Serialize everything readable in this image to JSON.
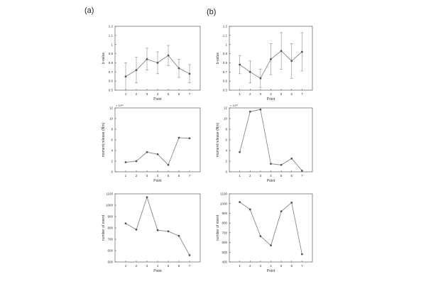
{
  "figure": {
    "panel_labels": [
      "(a)",
      "(b)"
    ]
  },
  "chart_data": [
    {
      "id": "a1",
      "type": "line",
      "panel": "(a)",
      "title": "",
      "xlabel": "Point",
      "ylabel": "b-value",
      "x": [
        1,
        2,
        3,
        4,
        5,
        6,
        7
      ],
      "xlim": [
        0,
        8
      ],
      "ylim": [
        0.5,
        1.2
      ],
      "yticks": [
        0.5,
        0.6,
        0.7,
        0.8,
        0.9,
        1,
        1.1,
        1.2
      ],
      "ytick_labels": [
        "0.5",
        "0.6",
        "0.7",
        "0.8",
        "0.9",
        "1",
        "1.1",
        "1.2"
      ],
      "y_exponent": "",
      "series": [
        {
          "values": [
            0.65,
            0.72,
            0.84,
            0.8,
            0.88,
            0.74,
            0.68
          ],
          "error": [
            0.15,
            0.14,
            0.12,
            0.12,
            0.11,
            0.1,
            0.1
          ]
        }
      ],
      "grid": false
    },
    {
      "id": "b1",
      "type": "line",
      "panel": "(b)",
      "title": "",
      "xlabel": "Point",
      "ylabel": "b-value",
      "x": [
        1,
        2,
        3,
        4,
        5,
        6,
        7
      ],
      "xlim": [
        0,
        8
      ],
      "ylim": [
        0.5,
        1.2
      ],
      "yticks": [
        0.5,
        0.6,
        0.7,
        0.8,
        0.9,
        1,
        1.1,
        1.2
      ],
      "ytick_labels": [
        "0.5",
        "0.6",
        "0.7",
        "0.8",
        "0.9",
        "1",
        "1.1",
        "1.2"
      ],
      "y_exponent": "",
      "series": [
        {
          "values": [
            0.78,
            0.7,
            0.63,
            0.84,
            0.93,
            0.82,
            0.92
          ],
          "error": [
            0.1,
            0.12,
            0.1,
            0.17,
            0.2,
            0.19,
            0.21
          ]
        }
      ],
      "grid": false
    },
    {
      "id": "a2",
      "type": "line",
      "panel": "(a)",
      "title": "",
      "xlabel": "Point",
      "ylabel": "moment release (Nm)",
      "x": [
        1,
        2,
        3,
        4,
        5,
        6,
        7
      ],
      "xlim": [
        0,
        8
      ],
      "ylim": [
        0,
        12
      ],
      "yticks": [
        0,
        2,
        4,
        6,
        8,
        10,
        12
      ],
      "ytick_labels": [
        "0",
        "2",
        "4",
        "6",
        "8",
        "10",
        "12"
      ],
      "y_exponent": "× 10¹⁸",
      "series": [
        {
          "values": [
            1.8,
            2.0,
            3.7,
            3.3,
            1.3,
            6.4,
            6.3
          ]
        }
      ],
      "grid": false
    },
    {
      "id": "b2",
      "type": "line",
      "panel": "(b)",
      "title": "",
      "xlabel": "Point",
      "ylabel": "moment release (Nm)",
      "x": [
        1,
        2,
        3,
        4,
        5,
        6,
        7
      ],
      "xlim": [
        0,
        8
      ],
      "ylim": [
        0,
        12
      ],
      "yticks": [
        0,
        2,
        4,
        6,
        8,
        10,
        12
      ],
      "ytick_labels": [
        "0",
        "2",
        "4",
        "6",
        "8",
        "10",
        "12"
      ],
      "y_exponent": "× 10¹⁸",
      "series": [
        {
          "values": [
            3.7,
            11.3,
            11.7,
            1.5,
            1.3,
            2.5,
            0.2
          ]
        }
      ],
      "grid": false
    },
    {
      "id": "a3",
      "type": "line",
      "panel": "(a)",
      "title": "",
      "xlabel": "Point",
      "ylabel": "number of event",
      "x": [
        1,
        2,
        3,
        4,
        5,
        6,
        7
      ],
      "xlim": [
        0,
        8
      ],
      "ylim": [
        500,
        1100
      ],
      "yticks": [
        500,
        600,
        700,
        800,
        900,
        1000,
        1100
      ],
      "ytick_labels": [
        "500",
        "600",
        "700",
        "800",
        "900",
        "1000",
        "1100"
      ],
      "y_exponent": "",
      "series": [
        {
          "values": [
            840,
            785,
            1070,
            780,
            770,
            730,
            560
          ]
        }
      ],
      "grid": false
    },
    {
      "id": "b3",
      "type": "line",
      "panel": "(b)",
      "title": "",
      "xlabel": "Point",
      "ylabel": "number of event",
      "x": [
        1,
        2,
        3,
        4,
        5,
        6,
        7
      ],
      "xlim": [
        0,
        8
      ],
      "ylim": [
        400,
        1100
      ],
      "yticks": [
        400,
        500,
        600,
        700,
        800,
        900,
        1000,
        1100
      ],
      "ytick_labels": [
        "400",
        "500",
        "600",
        "700",
        "800",
        "900",
        "1000",
        "1100"
      ],
      "y_exponent": "",
      "series": [
        {
          "values": [
            1015,
            940,
            665,
            570,
            920,
            1010,
            480
          ]
        }
      ],
      "grid": false
    }
  ],
  "colors": {
    "line": "#888888",
    "marker": "#555555",
    "axis": "#444444",
    "errorbar": "#777777"
  }
}
